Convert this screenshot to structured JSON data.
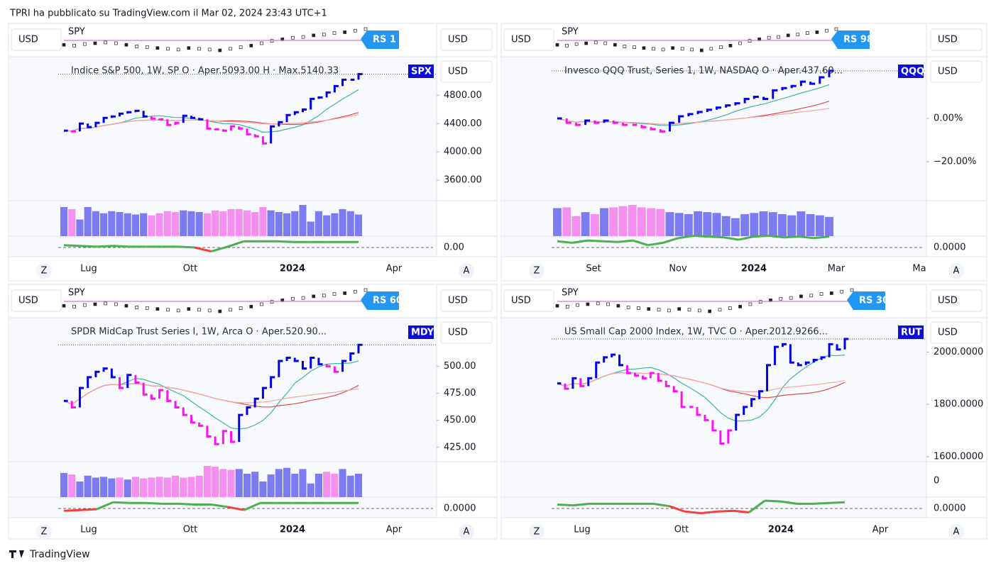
{
  "header": {
    "text": "TPRI ha pubblicato su TradingView.com il Mar 02, 2024 23:43 UTC+1"
  },
  "footer": {
    "brand": "TradingView"
  },
  "spy": [
    50,
    49,
    51,
    52,
    53,
    52,
    50,
    48,
    47,
    46,
    45,
    44,
    46,
    45,
    44,
    43,
    45,
    47,
    49,
    52,
    55,
    57,
    59,
    60,
    62,
    63,
    65,
    66,
    68,
    70
  ],
  "panels": [
    {
      "currency": "USD",
      "benchmark": "SPY",
      "rs": "RS 1",
      "title": "Indice S&P 500, 1W, SP  O · Aper.5093.00  H · Max.5140.33",
      "symbol": "SPX",
      "ylim": [
        3310,
        5345
      ],
      "yticks": [
        {
          "value": 4800,
          "label": "4800.00"
        },
        {
          "value": 4400,
          "label": "4400.00"
        },
        {
          "value": 4000,
          "label": "4000.00"
        },
        {
          "value": 3600,
          "label": "3600.00"
        }
      ],
      "closes": [
        4300,
        4290,
        4400,
        4350,
        4410,
        4480,
        4500,
        4540,
        4560,
        4580,
        4500,
        4470,
        4460,
        4380,
        4410,
        4510,
        4480,
        4460,
        4330,
        4320,
        4300,
        4360,
        4330,
        4250,
        4220,
        4120,
        4360,
        4420,
        4520,
        4560,
        4600,
        4750,
        4770,
        4840,
        4930,
        5020,
        5020,
        5100
      ],
      "volumes": [
        70,
        65,
        40,
        70,
        60,
        55,
        60,
        58,
        55,
        52,
        55,
        50,
        55,
        60,
        58,
        62,
        60,
        58,
        55,
        62,
        60,
        65,
        65,
        62,
        58,
        70,
        62,
        58,
        55,
        60,
        75,
        35,
        60,
        50,
        55,
        65,
        60,
        52
      ],
      "osc_tick": "0.00",
      "oscillator": [
        0.3,
        0.2,
        0.1,
        0.2,
        0.1,
        0.1,
        0.1,
        0.1,
        0.0,
        -0.5,
        0.1,
        0.8,
        0.8,
        0.8,
        0.7,
        0.7,
        0.7,
        0.7,
        0.7
      ],
      "xlabels": [
        "Lug",
        "Ott",
        "2024",
        "Apr"
      ],
      "zoom": "Z",
      "auto": "A"
    },
    {
      "currency": "USD",
      "benchmark": "SPY",
      "rs": "RS 98",
      "title": "Invesco QQQ Trust, Series 1, 1W, NASDAQ  O · Aper.437.60...",
      "symbol": "QQQ",
      "ylim": [
        -38,
        28.5
      ],
      "yticks": [
        {
          "value": 0,
          "label": "0.00%"
        },
        {
          "value": -20,
          "label": "−20.00%"
        }
      ],
      "closes": [
        0,
        -2,
        -3,
        -1,
        -2,
        -1,
        -2,
        -3,
        -3,
        -4,
        -5,
        -6,
        -2,
        1,
        2,
        3,
        4,
        5,
        6,
        7,
        9,
        10,
        9,
        13,
        14,
        15,
        17,
        16,
        19,
        22
      ],
      "volumes": [
        70,
        72,
        50,
        60,
        55,
        70,
        72,
        75,
        78,
        72,
        70,
        68,
        60,
        58,
        55,
        62,
        60,
        58,
        50,
        45,
        55,
        58,
        62,
        60,
        55,
        52,
        62,
        55,
        52,
        48
      ],
      "osc_tick": "0.0000",
      "oscillator": [
        0.8,
        0.6,
        0.9,
        0.8,
        0.7,
        0.9,
        0.3,
        0.6,
        1.2,
        1.5,
        1.4,
        1.3,
        1.0,
        1.4,
        1.5,
        1.3,
        1.4,
        1.2,
        1.4
      ],
      "xlabels": [
        "Set",
        "Nov",
        "2024",
        "Mar",
        "Ma"
      ],
      "zoom": "Z",
      "auto": "A"
    },
    {
      "currency": "USD",
      "benchmark": "SPY",
      "rs": "RS 60",
      "title": "SPDR MidCap Trust Series I, 1W, Arca  O · Aper.520.90...",
      "symbol": "MDY",
      "ylim": [
        411.7,
        545.1
      ],
      "yticks": [
        {
          "value": 500,
          "label": "500.00"
        },
        {
          "value": 475,
          "label": "475.00"
        },
        {
          "value": 450,
          "label": "450.00"
        },
        {
          "value": 425,
          "label": "425.00"
        }
      ],
      "closes": [
        468,
        462,
        480,
        490,
        495,
        498,
        490,
        480,
        492,
        485,
        474,
        470,
        478,
        468,
        462,
        455,
        448,
        445,
        435,
        428,
        440,
        430,
        455,
        462,
        470,
        480,
        490,
        505,
        508,
        505,
        498,
        508,
        502,
        500,
        495,
        505,
        512,
        520
      ],
      "volumes": [
        62,
        58,
        40,
        55,
        50,
        52,
        48,
        50,
        45,
        52,
        48,
        50,
        52,
        50,
        55,
        50,
        52,
        55,
        80,
        78,
        72,
        70,
        72,
        60,
        65,
        40,
        58,
        72,
        75,
        60,
        72,
        35,
        60,
        65,
        60,
        72,
        55,
        60
      ],
      "osc_tick": "0.0000",
      "oscillator": [
        -0.3,
        -0.2,
        -0.1,
        0.8,
        0.7,
        0.7,
        0.6,
        0.6,
        0.5,
        0.5,
        0.2,
        -0.2,
        0.7,
        0.7,
        0.7,
        0.7,
        0.7,
        0.7,
        0.7
      ],
      "xlabels": [
        "Lug",
        "Ott",
        "2024",
        "Apr"
      ],
      "zoom": "Z",
      "auto": "A"
    },
    {
      "currency": "USD",
      "benchmark": "SPY",
      "rs": "RS 30",
      "title": "US Small Cap 2000 Index, 1W, TVC  O · Aper.2012.9266...",
      "symbol": "RUT",
      "ylim": [
        1580.8,
        2131.5
      ],
      "yticks": [
        {
          "value": 2000,
          "label": "2000.0000"
        },
        {
          "value": 1800,
          "label": "1800.0000"
        },
        {
          "value": 1600,
          "label": "1600.0000"
        }
      ],
      "closes": [
        1880,
        1860,
        1900,
        1870,
        1900,
        1960,
        1980,
        1990,
        1950,
        1920,
        1910,
        1900,
        1920,
        1890,
        1870,
        1850,
        1790,
        1790,
        1760,
        1740,
        1700,
        1650,
        1700,
        1760,
        1790,
        1820,
        1850,
        1950,
        2020,
        2030,
        1960,
        1950,
        1960,
        1970,
        1980,
        2030,
        2010,
        2050
      ],
      "volume_tick": "0",
      "osc_tick": "0.0000",
      "oscillator": [
        0.5,
        0.4,
        0.6,
        0.6,
        0.6,
        0.6,
        0.6,
        0.3,
        -0.4,
        -0.6,
        -0.4,
        -0.3,
        -0.5,
        1.0,
        0.9,
        0.6,
        0.6,
        0.7,
        0.8
      ],
      "xlabels": [
        "Lug",
        "Ott",
        "2024",
        "Apr"
      ],
      "zoom": "Z",
      "auto": "A"
    }
  ]
}
